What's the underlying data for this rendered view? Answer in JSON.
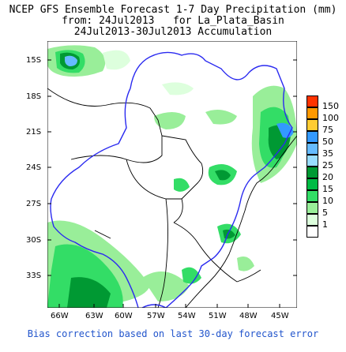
{
  "header": {
    "line1": "NCEP GFS Ensemble Forecast 1-7 Day Precipitation (mm)",
    "line2": "from: 24Jul2013   for La_Plata_Basin",
    "line3": "24Jul2013-30Jul2013 Accumulation"
  },
  "map": {
    "lat_labels": [
      "15S",
      "18S",
      "21S",
      "24S",
      "27S",
      "30S",
      "33S"
    ],
    "lon_labels": [
      "66W",
      "63W",
      "60W",
      "57W",
      "54W",
      "51W",
      "48W",
      "45W"
    ],
    "colors": {
      "ocean": "#ffffff",
      "land": "#ffffff",
      "border": "#000000",
      "basin_outline": "#2a2af0"
    }
  },
  "legend": {
    "items": [
      {
        "label": "150",
        "color": "#ff3300"
      },
      {
        "label": "100",
        "color": "#ff9900"
      },
      {
        "label": "75",
        "color": "#ffcc33"
      },
      {
        "label": "50",
        "color": "#3399ff"
      },
      {
        "label": "35",
        "color": "#66bbff"
      },
      {
        "label": "25",
        "color": "#99ddff"
      },
      {
        "label": "20",
        "color": "#009933"
      },
      {
        "label": "15",
        "color": "#00bb44"
      },
      {
        "label": "10",
        "color": "#33dd66"
      },
      {
        "label": "5",
        "color": "#99ee99"
      },
      {
        "label": "1",
        "color": "#ddffdd"
      },
      {
        "label": "",
        "color": "#ffffff"
      }
    ]
  },
  "footer": {
    "text": "Bias correction based on last 30-day forecast error"
  }
}
